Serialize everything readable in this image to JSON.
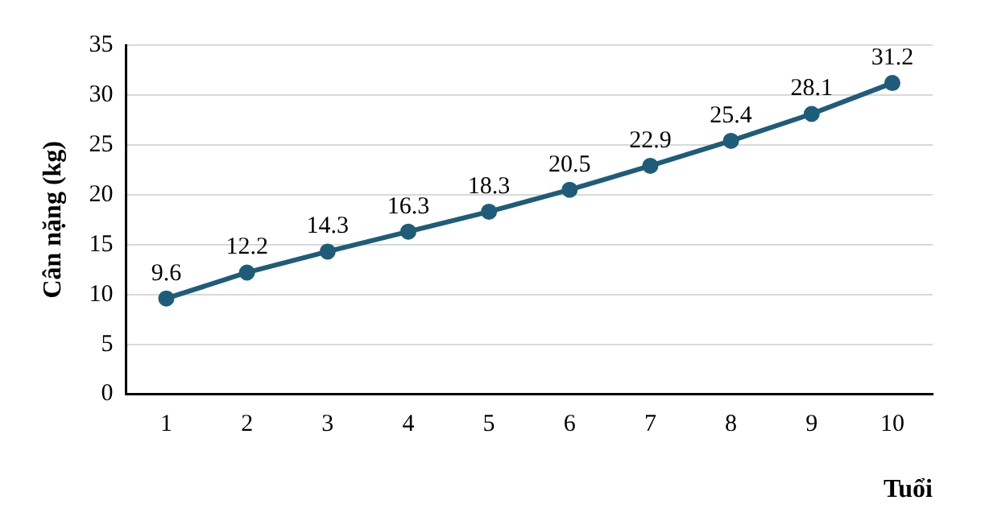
{
  "chart_data": {
    "type": "line",
    "xlabel": "Tuổi",
    "ylabel": "Cân nặng (kg)",
    "categories": [
      "1",
      "2",
      "3",
      "4",
      "5",
      "6",
      "7",
      "8",
      "9",
      "10"
    ],
    "series": [
      {
        "color": "#1f5c7a",
        "values": [
          9.6,
          12.2,
          14.3,
          16.3,
          18.3,
          20.5,
          22.9,
          25.4,
          28.1,
          31.2
        ]
      }
    ],
    "ylim": [
      0,
      35
    ],
    "yticks": [
      0,
      5,
      10,
      15,
      20,
      25,
      30,
      35
    ],
    "grid": "y",
    "legend": false,
    "marker": "circle",
    "line_style": "solid",
    "data_labels": true
  }
}
